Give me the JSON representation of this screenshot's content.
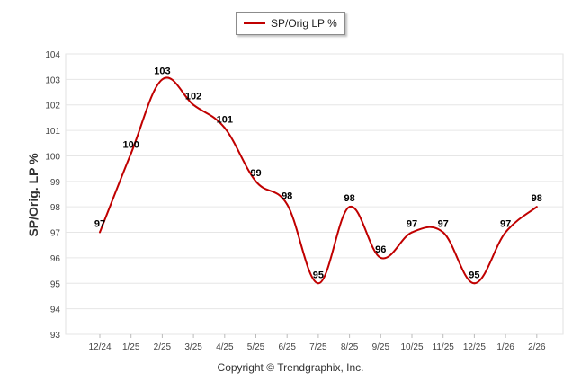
{
  "legend": {
    "label": "SP/Orig LP %",
    "color": "#c00000"
  },
  "footer": {
    "copyright": "Copyright © Trendgraphix, Inc."
  },
  "chart_data": {
    "type": "line",
    "title": "",
    "xlabel": "",
    "ylabel": "SP/Orig. LP %",
    "categories": [
      "12/24",
      "1/25",
      "2/25",
      "3/25",
      "4/25",
      "5/25",
      "6/25",
      "7/25",
      "8/25",
      "9/25",
      "10/25",
      "11/25",
      "12/25",
      "1/26",
      "2/26"
    ],
    "series": [
      {
        "name": "SP/Orig LP %",
        "values": [
          97.0,
          100.1,
          103.0,
          102.0,
          101.1,
          99.0,
          98.1,
          95.0,
          98.0,
          96.0,
          97.0,
          97.0,
          95.0,
          97.0,
          98.0
        ],
        "labels": [
          "97",
          "100",
          "103",
          "102",
          "101",
          "99",
          "98",
          "95",
          "98",
          "96",
          "97",
          "97",
          "95",
          "97",
          "98"
        ],
        "color": "#c00000"
      }
    ],
    "ylim": [
      93,
      104
    ],
    "yticks": [
      "93",
      "94",
      "95",
      "96",
      "97",
      "98",
      "99",
      "100",
      "101",
      "102",
      "103",
      "104"
    ],
    "grid": true,
    "legend_position": "top-center"
  }
}
